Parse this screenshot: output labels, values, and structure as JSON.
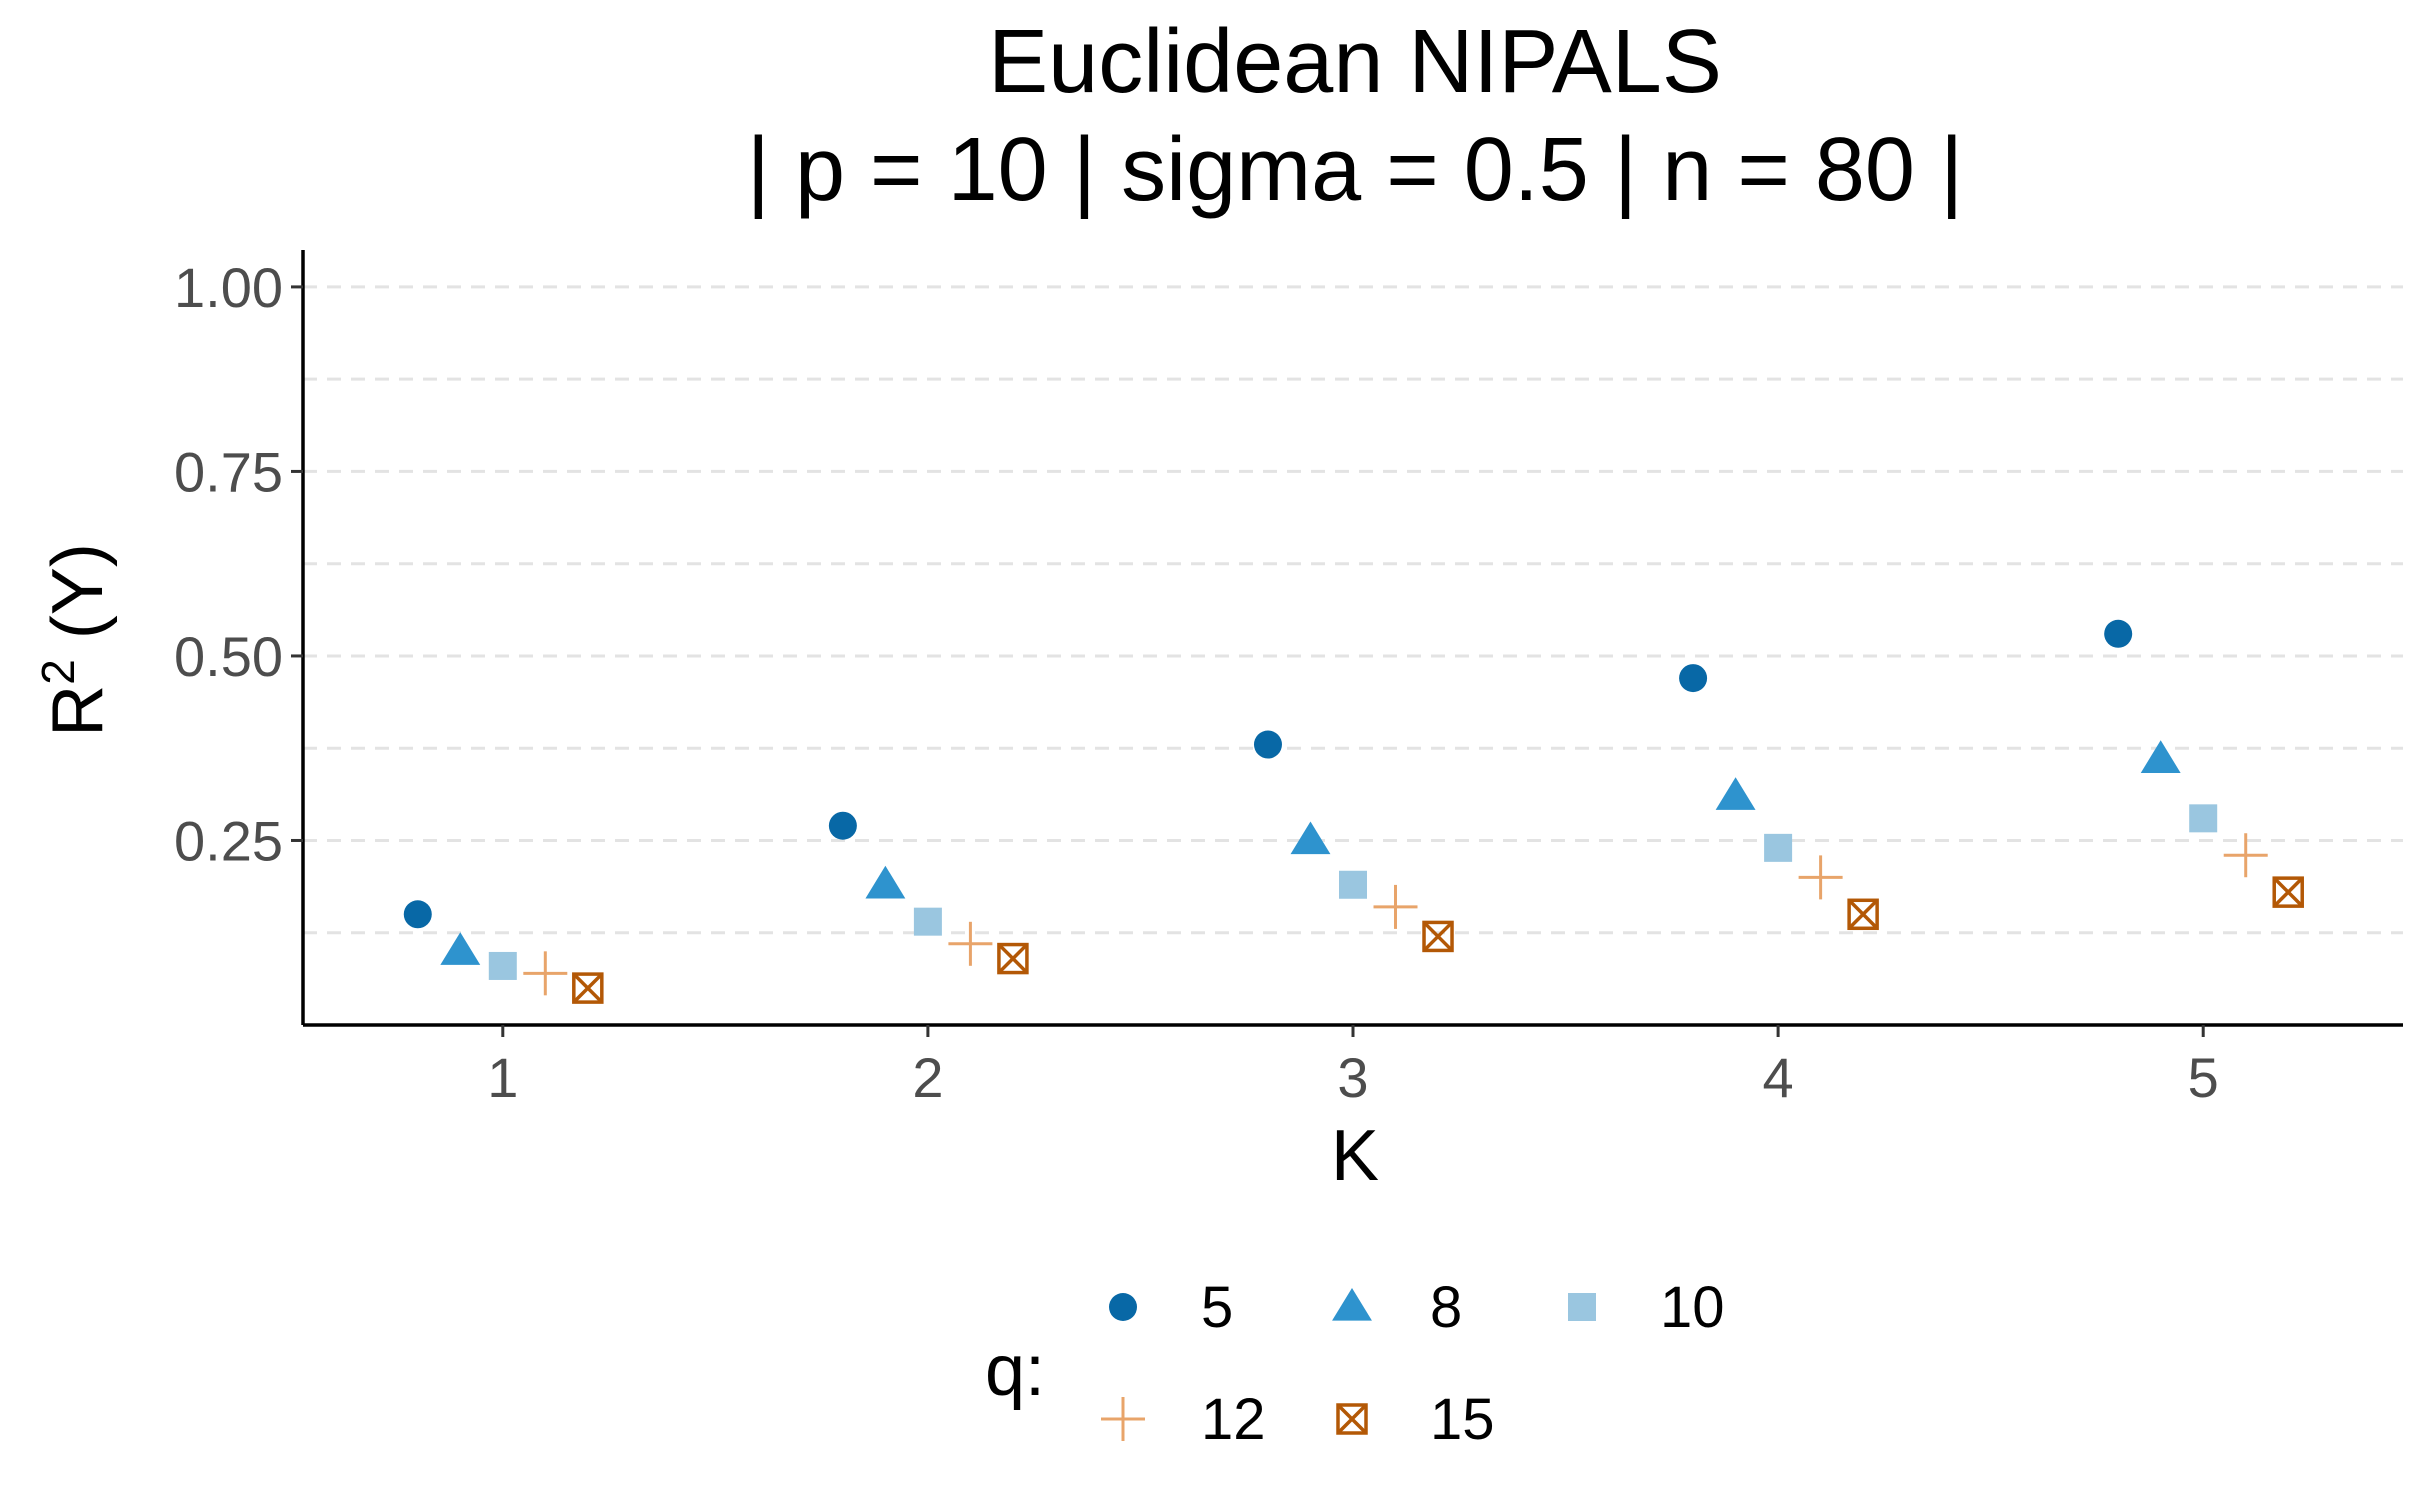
{
  "chart_data": {
    "type": "scatter",
    "title": "Euclidean NIPALS",
    "subtitle": "| p = 10 | sigma = 0.5 | n = 80 |",
    "xlabel": "K",
    "ylabel": "R",
    "ylabel_superscript": "2",
    "ylabel_suffix": " (Y)",
    "x_ticks": [
      "1",
      "2",
      "3",
      "4",
      "5"
    ],
    "y_ticks": [
      "0.25",
      "0.50",
      "0.75",
      "1.00"
    ],
    "ylim": [
      0,
      1.05
    ],
    "grid": "horizontal dashed",
    "legend_title": "q:",
    "legend_position": "bottom",
    "x": [
      1,
      2,
      3,
      4,
      5
    ],
    "series": [
      {
        "name": "5",
        "values": [
          0.15,
          0.27,
          0.38,
          0.47,
          0.53
        ],
        "color": "#0868a6",
        "shape": "circle"
      },
      {
        "name": "8",
        "values": [
          0.1,
          0.19,
          0.25,
          0.31,
          0.36
        ],
        "color": "#2e93ce",
        "shape": "triangle"
      },
      {
        "name": "10",
        "values": [
          0.08,
          0.14,
          0.19,
          0.24,
          0.28
        ],
        "color": "#9ac6e0",
        "shape": "square"
      },
      {
        "name": "12",
        "values": [
          0.07,
          0.11,
          0.16,
          0.2,
          0.23
        ],
        "color": "#e8a46a",
        "shape": "plus"
      },
      {
        "name": "15",
        "values": [
          0.05,
          0.09,
          0.12,
          0.15,
          0.18
        ],
        "color": "#b35806",
        "shape": "boxcross"
      }
    ]
  }
}
